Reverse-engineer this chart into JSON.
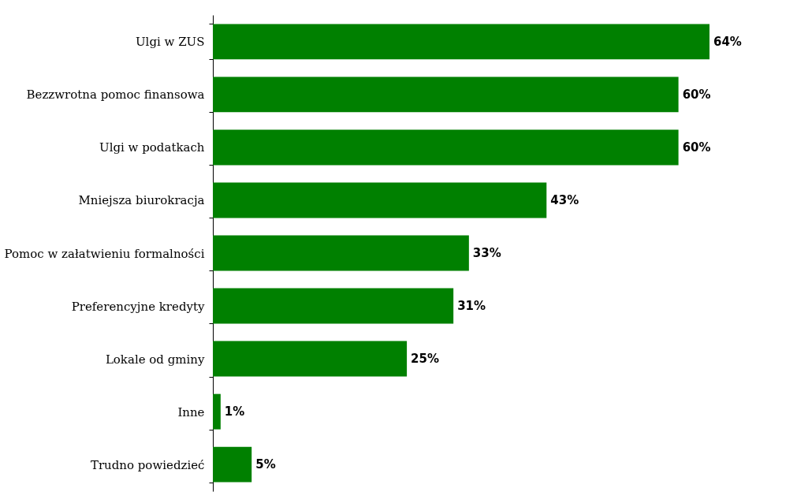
{
  "chart_data": {
    "type": "bar",
    "orientation": "horizontal",
    "categories": [
      "Ulgi w ZUS",
      "Bezzwrotna pomoc finansowa",
      "Ulgi w podatkach",
      "Mniejsza biurokracja",
      "Pomoc w załatwieniu formalności",
      "Preferencyjne kredyty",
      "Lokale od gminy",
      "Inne",
      "Trudno powiedzieć"
    ],
    "values": [
      64,
      60,
      60,
      43,
      33,
      31,
      25,
      1,
      5
    ],
    "value_labels": [
      "64%",
      "60%",
      "60%",
      "43%",
      "33%",
      "31%",
      "25%",
      "1%",
      "5%"
    ],
    "color": "#008000"
  }
}
